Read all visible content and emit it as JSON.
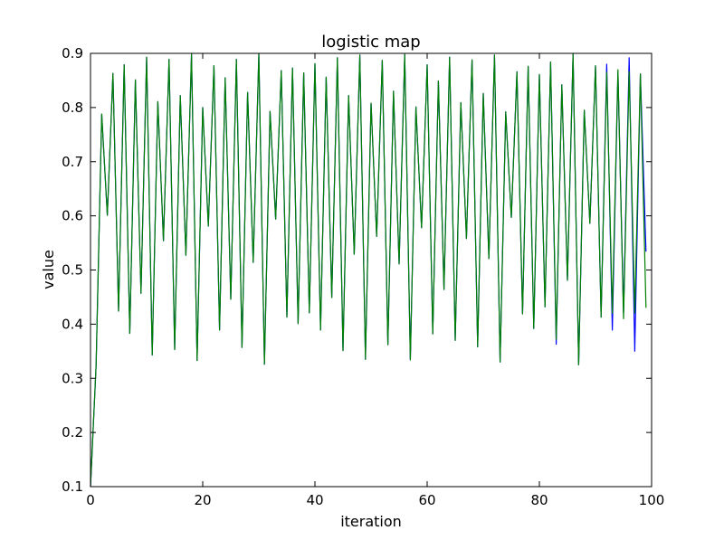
{
  "chart_data": {
    "type": "line",
    "title": "logistic map",
    "xlabel": "iteration",
    "ylabel": "value",
    "xlim": [
      0,
      100
    ],
    "ylim": [
      0.1,
      0.9
    ],
    "xticks": [
      0,
      20,
      40,
      60,
      80,
      100
    ],
    "yticks": [
      0.1,
      0.2,
      0.3,
      0.4,
      0.5,
      0.6,
      0.7,
      0.8,
      0.9
    ],
    "grid": false,
    "legend": "none",
    "series": [
      {
        "color": "#0000ff",
        "x": [
          0,
          1,
          2,
          3,
          4,
          5,
          6,
          7,
          8,
          9,
          10,
          11,
          12,
          13,
          14,
          15,
          16,
          17,
          18,
          19,
          20,
          21,
          22,
          23,
          24,
          25,
          26,
          27,
          28,
          29,
          30,
          31,
          32,
          33,
          34,
          35,
          36,
          37,
          38,
          39,
          40,
          41,
          42,
          43,
          44,
          45,
          46,
          47,
          48,
          49,
          50,
          51,
          52,
          53,
          54,
          55,
          56,
          57,
          58,
          59,
          60,
          61,
          62,
          63,
          64,
          65,
          66,
          67,
          68,
          69,
          70,
          71,
          72,
          73,
          74,
          75,
          76,
          77,
          78,
          79,
          80,
          81,
          82,
          83,
          84,
          85,
          86,
          87,
          88,
          89,
          90,
          91,
          92,
          93,
          94,
          95,
          96,
          97,
          98,
          99
        ],
        "y": [
          0.1,
          0.324,
          0.788,
          0.601,
          0.863,
          0.424,
          0.879,
          0.383,
          0.851,
          0.457,
          0.893,
          0.343,
          0.811,
          0.554,
          0.889,
          0.353,
          0.822,
          0.527,
          0.899,
          0.333,
          0.8,
          0.581,
          0.877,
          0.389,
          0.855,
          0.446,
          0.889,
          0.357,
          0.828,
          0.514,
          0.899,
          0.326,
          0.793,
          0.594,
          0.868,
          0.413,
          0.873,
          0.401,
          0.864,
          0.421,
          0.881,
          0.389,
          0.856,
          0.449,
          0.892,
          0.351,
          0.822,
          0.529,
          0.897,
          0.335,
          0.808,
          0.562,
          0.887,
          0.362,
          0.83,
          0.511,
          0.898,
          0.334,
          0.801,
          0.578,
          0.879,
          0.382,
          0.849,
          0.464,
          0.893,
          0.37,
          0.809,
          0.558,
          0.888,
          0.358,
          0.826,
          0.521,
          0.897,
          0.33,
          0.792,
          0.597,
          0.866,
          0.419,
          0.876,
          0.392,
          0.861,
          0.432,
          0.884,
          0.363,
          0.842,
          0.481,
          0.899,
          0.325,
          0.795,
          0.586,
          0.877,
          0.413,
          0.88,
          0.389,
          0.865,
          0.421,
          0.892,
          0.35,
          0.862,
          0.534
        ]
      },
      {
        "color": "#008000",
        "x": [
          0,
          1,
          2,
          3,
          4,
          5,
          6,
          7,
          8,
          9,
          10,
          11,
          12,
          13,
          14,
          15,
          16,
          17,
          18,
          19,
          20,
          21,
          22,
          23,
          24,
          25,
          26,
          27,
          28,
          29,
          30,
          31,
          32,
          33,
          34,
          35,
          36,
          37,
          38,
          39,
          40,
          41,
          42,
          43,
          44,
          45,
          46,
          47,
          48,
          49,
          50,
          51,
          52,
          53,
          54,
          55,
          56,
          57,
          58,
          59,
          60,
          61,
          62,
          63,
          64,
          65,
          66,
          67,
          68,
          69,
          70,
          71,
          72,
          73,
          74,
          75,
          76,
          77,
          78,
          79,
          80,
          81,
          82,
          83,
          84,
          85,
          86,
          87,
          88,
          89,
          90,
          91,
          92,
          93,
          94,
          95,
          96,
          97,
          98,
          99
        ],
        "y": [
          0.1,
          0.324,
          0.788,
          0.601,
          0.863,
          0.424,
          0.879,
          0.383,
          0.851,
          0.457,
          0.893,
          0.343,
          0.811,
          0.554,
          0.889,
          0.353,
          0.822,
          0.527,
          0.899,
          0.333,
          0.8,
          0.581,
          0.877,
          0.389,
          0.855,
          0.446,
          0.889,
          0.357,
          0.828,
          0.514,
          0.899,
          0.326,
          0.793,
          0.594,
          0.868,
          0.413,
          0.873,
          0.401,
          0.864,
          0.421,
          0.881,
          0.389,
          0.856,
          0.449,
          0.892,
          0.351,
          0.822,
          0.529,
          0.897,
          0.335,
          0.808,
          0.562,
          0.887,
          0.362,
          0.83,
          0.511,
          0.898,
          0.334,
          0.801,
          0.578,
          0.879,
          0.382,
          0.849,
          0.464,
          0.893,
          0.37,
          0.809,
          0.558,
          0.888,
          0.358,
          0.826,
          0.521,
          0.897,
          0.33,
          0.792,
          0.597,
          0.866,
          0.419,
          0.876,
          0.392,
          0.861,
          0.432,
          0.884,
          0.372,
          0.842,
          0.481,
          0.899,
          0.325,
          0.795,
          0.586,
          0.877,
          0.413,
          0.865,
          0.42,
          0.87,
          0.41,
          0.866,
          0.42,
          0.862,
          0.43
        ]
      }
    ]
  }
}
